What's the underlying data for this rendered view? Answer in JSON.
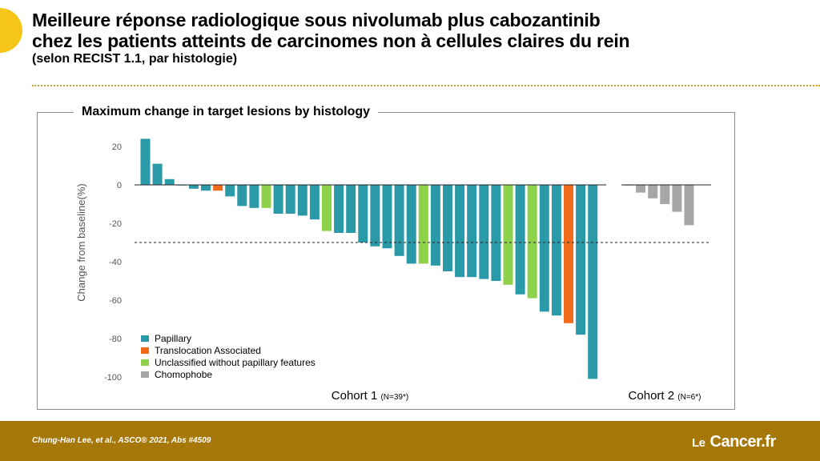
{
  "slide": {
    "title_line1": "Meilleure réponse radiologique sous nivolumab plus cabozantinib",
    "title_line2": "chez les patients atteints de carcinomes non à cellules claires du rein",
    "subtitle": "(selon RECIST 1.1, par histologie)"
  },
  "footer": {
    "citation": "Chung-Han Lee, et al., ASCO® 2021, Abs #4509",
    "logo_le": "Le",
    "logo_main": "Cancer.fr"
  },
  "colors": {
    "papillary": "#2a9aa8",
    "translocation": "#f26a1b",
    "unclassified": "#8ed24a",
    "chromophobe": "#a6a6a6",
    "accent_yellow": "#f5c518",
    "footer_gold": "#a6780a"
  },
  "chart_data": {
    "type": "bar",
    "title": "Maximum change in target lesions by histology",
    "ylabel": "Change from baseline(%)",
    "ylim": [
      -100,
      20
    ],
    "yticks": [
      "20",
      "0",
      "-20",
      "-40",
      "-60",
      "-80",
      "-100"
    ],
    "yticks_values": [
      20,
      0,
      -20,
      -40,
      -60,
      -80,
      -100
    ],
    "reference_line": -30,
    "legend_position": "bottom-left",
    "legend": [
      {
        "key": "P",
        "label": "Papillary",
        "color": "#2a9aa8"
      },
      {
        "key": "T",
        "label": "Translocation Associated",
        "color": "#f26a1b"
      },
      {
        "key": "U",
        "label": "Unclassified without papillary features",
        "color": "#8ed24a"
      },
      {
        "key": "C",
        "label": "Chomophobe",
        "color": "#a6a6a6"
      }
    ],
    "cohorts": [
      {
        "label": "Cohort 1",
        "n_label": "(N=39*)",
        "values": [
          24,
          11,
          3,
          0,
          -2,
          -3,
          -3,
          -6,
          -11,
          -12,
          -12,
          -15,
          -15,
          -16,
          -18,
          -24,
          -25,
          -25,
          -30,
          -32,
          -33,
          -37,
          -41,
          -41,
          -42,
          -45,
          -48,
          -48,
          -49,
          -50,
          -52,
          -57,
          -59,
          -66,
          -68,
          -72,
          -78,
          -101
        ],
        "types": [
          "P",
          "P",
          "P",
          "P",
          "P",
          "P",
          "T",
          "P",
          "P",
          "P",
          "U",
          "P",
          "P",
          "P",
          "P",
          "U",
          "P",
          "P",
          "P",
          "P",
          "P",
          "P",
          "P",
          "U",
          "P",
          "P",
          "P",
          "P",
          "P",
          "P",
          "U",
          "P",
          "U",
          "P",
          "P",
          "T",
          "P",
          "P"
        ]
      },
      {
        "label": "Cohort 2",
        "n_label": "(N=6*)",
        "values": [
          0,
          -4,
          -7,
          -10,
          -14,
          -21
        ],
        "types": [
          "C",
          "C",
          "C",
          "C",
          "C",
          "C"
        ]
      }
    ]
  }
}
